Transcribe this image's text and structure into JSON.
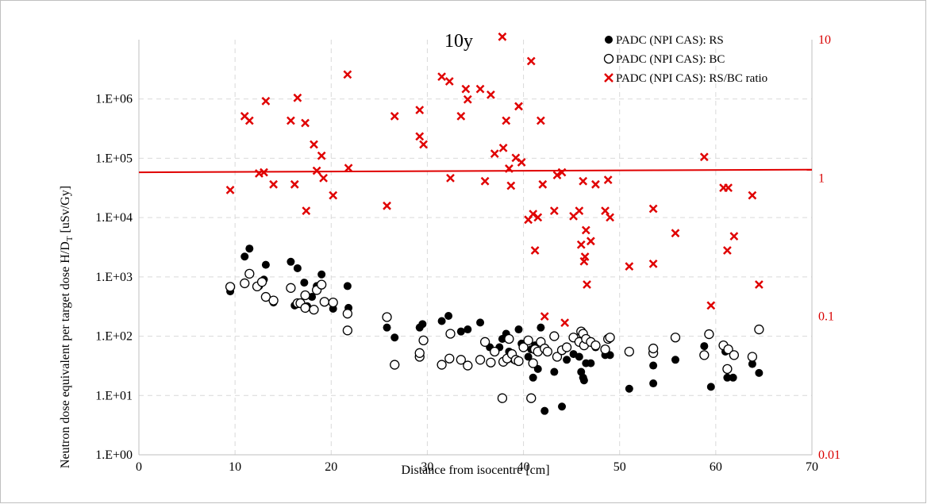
{
  "chart_data": {
    "type": "scatter",
    "title": "10y",
    "xlabel": "Distance from isocentre [cm]",
    "ylabel": "Neutron dose equivalent per target dose     H/D",
    "ylabel_sub": "T",
    "ylabel_unit": " [uSv/Gy]",
    "xlim": [
      0,
      70
    ],
    "x_ticks": [
      "0",
      "10",
      "20",
      "30",
      "40",
      "50",
      "60",
      "70"
    ],
    "y_left": {
      "scale": "log",
      "ylim": [
        1,
        10000000
      ],
      "ticks": [
        "1.E+00",
        "1.E+01",
        "1.E+02",
        "1.E+03",
        "1.E+04",
        "1.E+05",
        "1.E+06"
      ]
    },
    "y_right": {
      "scale": "log",
      "ylim": [
        0.01,
        10
      ],
      "ticks": [
        "0.01",
        "0.1",
        "1",
        "10"
      ]
    },
    "grid": true,
    "legend_position": "top-right",
    "reference_line": {
      "axis": "right",
      "from": [
        0,
        1.1
      ],
      "to": [
        70,
        1.15
      ],
      "color": "#e00000"
    },
    "series": [
      {
        "name": "PADC (NPI CAS): RS",
        "axis": "left",
        "marker": "filled-circle",
        "color": "#000000",
        "points": [
          [
            9.5,
            570
          ],
          [
            11.0,
            2200
          ],
          [
            11.5,
            3000
          ],
          [
            12.5,
            700
          ],
          [
            13.0,
            900
          ],
          [
            13.2,
            1600
          ],
          [
            14.0,
            370
          ],
          [
            15.8,
            1800
          ],
          [
            16.5,
            1400
          ],
          [
            16.2,
            330
          ],
          [
            17.2,
            800
          ],
          [
            17.5,
            320
          ],
          [
            18.0,
            460
          ],
          [
            18.5,
            700
          ],
          [
            19.0,
            1100
          ],
          [
            20.2,
            290
          ],
          [
            21.7,
            700
          ],
          [
            21.8,
            300
          ],
          [
            25.8,
            140
          ],
          [
            26.6,
            95
          ],
          [
            29.2,
            140
          ],
          [
            29.5,
            160
          ],
          [
            31.5,
            180
          ],
          [
            32.2,
            220
          ],
          [
            33.5,
            120
          ],
          [
            34.2,
            130
          ],
          [
            35.5,
            170
          ],
          [
            36.5,
            65
          ],
          [
            37.5,
            65
          ],
          [
            37.8,
            90
          ],
          [
            38.2,
            110
          ],
          [
            38.5,
            55
          ],
          [
            39.0,
            40
          ],
          [
            39.5,
            130
          ],
          [
            39.8,
            75
          ],
          [
            40.5,
            45
          ],
          [
            40.8,
            60
          ],
          [
            41.0,
            20
          ],
          [
            41.2,
            70
          ],
          [
            41.5,
            28
          ],
          [
            41.8,
            140
          ],
          [
            42.2,
            5.5
          ],
          [
            42.5,
            55
          ],
          [
            43.2,
            25
          ],
          [
            44.0,
            6.5
          ],
          [
            44.5,
            40
          ],
          [
            45.2,
            50
          ],
          [
            45.8,
            45
          ],
          [
            46.0,
            25
          ],
          [
            46.2,
            20
          ],
          [
            46.3,
            18
          ],
          [
            46.5,
            35
          ],
          [
            47.0,
            35
          ],
          [
            47.5,
            65
          ],
          [
            48.5,
            48
          ],
          [
            49.0,
            48
          ],
          [
            51.0,
            13
          ],
          [
            53.5,
            32
          ],
          [
            53.5,
            16
          ],
          [
            55.8,
            40
          ],
          [
            58.8,
            68
          ],
          [
            59.5,
            14
          ],
          [
            61.0,
            55
          ],
          [
            61.2,
            20
          ],
          [
            61.8,
            20
          ],
          [
            63.8,
            34
          ],
          [
            64.5,
            24
          ]
        ]
      },
      {
        "name": "PADC (NPI CAS): BC",
        "axis": "left",
        "marker": "open-circle",
        "color": "#000000",
        "points": [
          [
            9.5,
            680
          ],
          [
            11.0,
            780
          ],
          [
            11.5,
            1130
          ],
          [
            12.3,
            690
          ],
          [
            12.8,
            820
          ],
          [
            13.2,
            460
          ],
          [
            14.0,
            400
          ],
          [
            15.8,
            650
          ],
          [
            16.5,
            360
          ],
          [
            16.8,
            360
          ],
          [
            17.3,
            300
          ],
          [
            17.3,
            490
          ],
          [
            18.2,
            280
          ],
          [
            18.5,
            600
          ],
          [
            19.0,
            740
          ],
          [
            19.3,
            380
          ],
          [
            20.2,
            370
          ],
          [
            21.7,
            240
          ],
          [
            21.7,
            125
          ],
          [
            25.8,
            210
          ],
          [
            26.6,
            33
          ],
          [
            29.2,
            45
          ],
          [
            29.2,
            52
          ],
          [
            29.6,
            85
          ],
          [
            31.5,
            33
          ],
          [
            32.3,
            42
          ],
          [
            32.4,
            110
          ],
          [
            33.5,
            40
          ],
          [
            34.2,
            32
          ],
          [
            35.5,
            40
          ],
          [
            36.0,
            80
          ],
          [
            36.6,
            36
          ],
          [
            37.0,
            55
          ],
          [
            37.8,
            9
          ],
          [
            37.9,
            37
          ],
          [
            38.3,
            42
          ],
          [
            38.5,
            90
          ],
          [
            38.8,
            50
          ],
          [
            39.2,
            40
          ],
          [
            39.5,
            38
          ],
          [
            40.0,
            65
          ],
          [
            40.5,
            85
          ],
          [
            40.8,
            9
          ],
          [
            41.0,
            35
          ],
          [
            41.2,
            60
          ],
          [
            41.5,
            55
          ],
          [
            41.8,
            80
          ],
          [
            42.2,
            62
          ],
          [
            42.5,
            55
          ],
          [
            43.2,
            100
          ],
          [
            43.5,
            45
          ],
          [
            44.0,
            58
          ],
          [
            44.5,
            65
          ],
          [
            45.2,
            95
          ],
          [
            45.8,
            80
          ],
          [
            46.0,
            120
          ],
          [
            46.2,
            110
          ],
          [
            46.3,
            70
          ],
          [
            46.5,
            90
          ],
          [
            47.0,
            80
          ],
          [
            47.5,
            70
          ],
          [
            48.5,
            60
          ],
          [
            48.8,
            90
          ],
          [
            49.0,
            95
          ],
          [
            51.0,
            55
          ],
          [
            53.5,
            52
          ],
          [
            53.5,
            62
          ],
          [
            55.8,
            95
          ],
          [
            58.8,
            48
          ],
          [
            59.3,
            108
          ],
          [
            60.8,
            70
          ],
          [
            61.2,
            28
          ],
          [
            61.3,
            60
          ],
          [
            61.9,
            48
          ],
          [
            63.8,
            45
          ],
          [
            64.5,
            130
          ]
        ]
      },
      {
        "name": "PADC (NPI CAS): RS/BC ratio",
        "axis": "right",
        "marker": "x",
        "color": "#e00000",
        "points": [
          [
            9.5,
            0.82
          ],
          [
            11.0,
            2.8
          ],
          [
            11.5,
            2.6
          ],
          [
            12.5,
            1.08
          ],
          [
            13.0,
            1.1
          ],
          [
            13.2,
            3.6
          ],
          [
            14.0,
            0.9
          ],
          [
            15.8,
            2.6
          ],
          [
            16.2,
            0.9
          ],
          [
            16.5,
            3.8
          ],
          [
            17.3,
            2.5
          ],
          [
            17.4,
            0.58
          ],
          [
            18.2,
            1.75
          ],
          [
            18.5,
            1.13
          ],
          [
            19.0,
            1.45
          ],
          [
            19.2,
            1.0
          ],
          [
            20.2,
            0.75
          ],
          [
            21.7,
            5.6
          ],
          [
            21.8,
            1.18
          ],
          [
            25.8,
            0.63
          ],
          [
            26.6,
            2.8
          ],
          [
            29.2,
            3.1
          ],
          [
            29.2,
            2.0
          ],
          [
            29.6,
            1.75
          ],
          [
            31.5,
            5.4
          ],
          [
            32.3,
            5.0
          ],
          [
            32.4,
            1.0
          ],
          [
            33.5,
            2.8
          ],
          [
            34.0,
            4.4
          ],
          [
            34.2,
            3.7
          ],
          [
            35.5,
            4.4
          ],
          [
            36.0,
            0.95
          ],
          [
            36.6,
            4.0
          ],
          [
            37.0,
            1.5
          ],
          [
            37.8,
            10.5
          ],
          [
            37.9,
            1.65
          ],
          [
            38.2,
            2.6
          ],
          [
            38.5,
            1.17
          ],
          [
            38.7,
            0.88
          ],
          [
            39.2,
            1.4
          ],
          [
            39.5,
            3.3
          ],
          [
            39.8,
            1.3
          ],
          [
            40.5,
            0.5
          ],
          [
            40.8,
            7.0
          ],
          [
            41.0,
            0.55
          ],
          [
            41.2,
            0.3
          ],
          [
            41.5,
            0.52
          ],
          [
            41.8,
            2.6
          ],
          [
            42.0,
            0.9
          ],
          [
            42.2,
            0.1
          ],
          [
            43.2,
            0.58
          ],
          [
            43.5,
            1.05
          ],
          [
            44.0,
            1.1
          ],
          [
            44.3,
            0.09
          ],
          [
            45.2,
            0.53
          ],
          [
            45.8,
            0.58
          ],
          [
            46.0,
            0.33
          ],
          [
            46.2,
            0.95
          ],
          [
            46.3,
            0.25
          ],
          [
            46.4,
            0.27
          ],
          [
            46.5,
            0.42
          ],
          [
            46.6,
            0.17
          ],
          [
            47.0,
            0.35
          ],
          [
            47.5,
            0.9
          ],
          [
            48.5,
            0.58
          ],
          [
            48.8,
            0.97
          ],
          [
            49.0,
            0.52
          ],
          [
            51.0,
            0.23
          ],
          [
            53.5,
            0.6
          ],
          [
            53.5,
            0.24
          ],
          [
            55.8,
            0.4
          ],
          [
            58.8,
            1.42
          ],
          [
            59.5,
            0.12
          ],
          [
            60.8,
            0.85
          ],
          [
            61.2,
            0.3
          ],
          [
            61.3,
            0.85
          ],
          [
            61.9,
            0.38
          ],
          [
            63.8,
            0.75
          ],
          [
            64.5,
            0.17
          ]
        ]
      }
    ]
  }
}
